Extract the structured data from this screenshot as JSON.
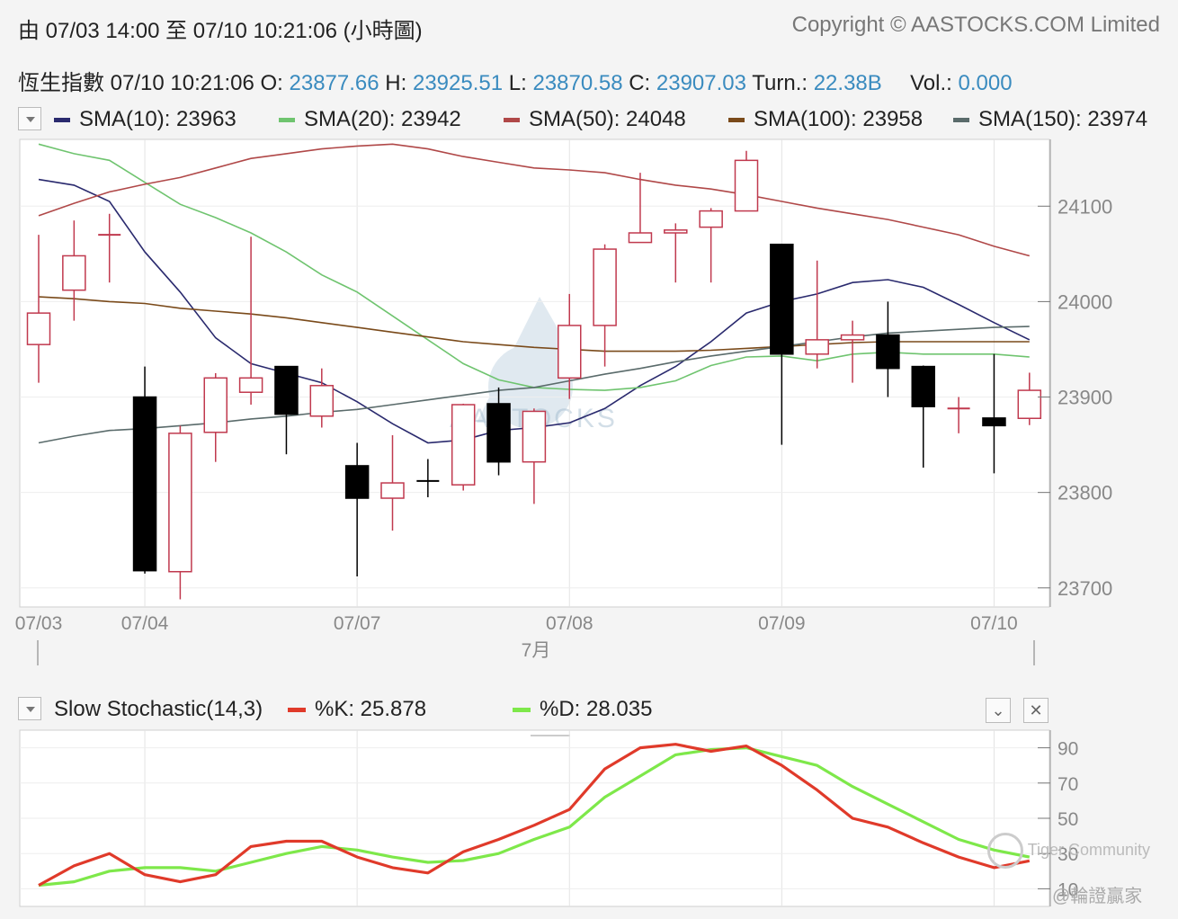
{
  "header": {
    "range_text": "由  07/03 14:00 至  07/10 10:21:06 (小時圖)",
    "copyright": "Copyright © AASTOCKS.COM Limited"
  },
  "quote": {
    "name": "恆生指數",
    "time": "07/10 10:21:06",
    "o_label": "O:",
    "o": "23877.66",
    "h_label": "H:",
    "h": "23925.51",
    "l_label": "L:",
    "l": "23870.58",
    "c_label": "C:",
    "c": "23907.03",
    "turn_label": "Turn.:",
    "turn": "22.38B",
    "vol_label": "Vol.:",
    "vol": "0.000"
  },
  "main_legend": [
    {
      "label": "SMA(10): 23963",
      "color": "#2a2a6e"
    },
    {
      "label": "SMA(20): 23942",
      "color": "#6fc46f"
    },
    {
      "label": "SMA(50): 24048",
      "color": "#b04848"
    },
    {
      "label": "SMA(100): 23958",
      "color": "#7a4a1a"
    },
    {
      "label": "SMA(150): 23974",
      "color": "#5a6b6b"
    }
  ],
  "sub_legend": {
    "title": "Slow Stochastic(14,3)",
    "k_label": "%K: 25.878",
    "k_color": "#e03a2a",
    "d_label": "%D: 28.035",
    "d_color": "#7ee84a"
  },
  "watermarks": {
    "center": "AASTOCKS",
    "tiger": "Tiger Community",
    "handle": "@輪證贏家"
  },
  "colors": {
    "up": "#c0394e",
    "down": "#000000",
    "price_label": "#3a8bbf"
  },
  "chart_data": [
    {
      "type": "candlestick",
      "ylim": [
        23680,
        24170
      ],
      "yticks": [
        23700,
        23800,
        23900,
        24000,
        24100
      ],
      "x_ticks": [
        {
          "i": 0,
          "label": "07/03"
        },
        {
          "i": 3,
          "label": "07/04"
        },
        {
          "i": 9,
          "label": "07/07"
        },
        {
          "i": 15,
          "label": "07/08"
        },
        {
          "i": 21,
          "label": "07/09"
        },
        {
          "i": 27,
          "label": "07/10"
        }
      ],
      "month_label": "7月",
      "candles": [
        {
          "o": 23955,
          "h": 24070,
          "l": 23915,
          "c": 23988
        },
        {
          "o": 24012,
          "h": 24085,
          "l": 23980,
          "c": 24048
        },
        {
          "o": 24068,
          "h": 24092,
          "l": 24020,
          "c": 24070
        },
        {
          "o": 23900,
          "h": 23932,
          "l": 23715,
          "c": 23718
        },
        {
          "o": 23717,
          "h": 23870,
          "l": 23688,
          "c": 23862
        },
        {
          "o": 23863,
          "h": 23925,
          "l": 23832,
          "c": 23920
        },
        {
          "o": 23905,
          "h": 24068,
          "l": 23892,
          "c": 23920
        },
        {
          "o": 23932,
          "h": 23932,
          "l": 23840,
          "c": 23882
        },
        {
          "o": 23880,
          "h": 23930,
          "l": 23868,
          "c": 23912
        },
        {
          "o": 23828,
          "h": 23852,
          "l": 23712,
          "c": 23794
        },
        {
          "o": 23794,
          "h": 23860,
          "l": 23760,
          "c": 23810
        },
        {
          "o": 23812,
          "h": 23835,
          "l": 23795,
          "c": 23810
        },
        {
          "o": 23808,
          "h": 23893,
          "l": 23802,
          "c": 23892
        },
        {
          "o": 23893,
          "h": 23910,
          "l": 23818,
          "c": 23832
        },
        {
          "o": 23832,
          "h": 23888,
          "l": 23788,
          "c": 23885
        },
        {
          "o": 23920,
          "h": 24008,
          "l": 23898,
          "c": 23975
        },
        {
          "o": 23975,
          "h": 24060,
          "l": 23932,
          "c": 24055
        },
        {
          "o": 24062,
          "h": 24135,
          "l": 24062,
          "c": 24072
        },
        {
          "o": 24072,
          "h": 24082,
          "l": 24020,
          "c": 24075
        },
        {
          "o": 24078,
          "h": 24098,
          "l": 24020,
          "c": 24095
        },
        {
          "o": 24095,
          "h": 24158,
          "l": 24095,
          "c": 24148
        },
        {
          "o": 24060,
          "h": 24060,
          "l": 23850,
          "c": 23945
        },
        {
          "o": 23945,
          "h": 24043,
          "l": 23930,
          "c": 23960
        },
        {
          "o": 23960,
          "h": 23980,
          "l": 23915,
          "c": 23965
        },
        {
          "o": 23965,
          "h": 24000,
          "l": 23900,
          "c": 23930
        },
        {
          "o": 23932,
          "h": 23933,
          "l": 23826,
          "c": 23890
        },
        {
          "o": 23888,
          "h": 23900,
          "l": 23862,
          "c": 23888
        },
        {
          "o": 23878,
          "h": 23945,
          "l": 23820,
          "c": 23870
        },
        {
          "o": 23877.66,
          "h": 23925.51,
          "l": 23870.58,
          "c": 23907.03
        }
      ],
      "series": [
        {
          "name": "SMA(10)",
          "color": "#2a2a6e",
          "values": [
            24128,
            24122,
            24105,
            24052,
            24010,
            23962,
            23935,
            23925,
            23915,
            23895,
            23872,
            23852,
            23855,
            23865,
            23868,
            23873,
            23888,
            23912,
            23932,
            23958,
            23988,
            24000,
            24008,
            24020,
            24023,
            24015,
            23997,
            23978,
            23960
          ]
        },
        {
          "name": "SMA(20)",
          "color": "#6fc46f",
          "values": [
            24165,
            24155,
            24148,
            24125,
            24102,
            24088,
            24072,
            24052,
            24028,
            24010,
            23985,
            23960,
            23935,
            23918,
            23910,
            23908,
            23907,
            23910,
            23917,
            23933,
            23942,
            23943,
            23938,
            23945,
            23947,
            23945,
            23945,
            23945,
            23942
          ]
        },
        {
          "name": "SMA(50)",
          "color": "#b04848",
          "values": [
            24090,
            24103,
            24115,
            24123,
            24130,
            24140,
            24150,
            24155,
            24160,
            24163,
            24165,
            24160,
            24152,
            24146,
            24140,
            24138,
            24135,
            24128,
            24122,
            24118,
            24112,
            24105,
            24098,
            24092,
            24086,
            24078,
            24070,
            24058,
            24048
          ]
        },
        {
          "name": "SMA(100)",
          "color": "#7a4a1a",
          "values": [
            24005,
            24003,
            24000,
            23998,
            23993,
            23990,
            23987,
            23983,
            23978,
            23973,
            23968,
            23963,
            23958,
            23955,
            23952,
            23950,
            23948,
            23948,
            23948,
            23949,
            23951,
            23953,
            23955,
            23957,
            23958,
            23958,
            23958,
            23958,
            23958
          ]
        },
        {
          "name": "SMA(150)",
          "color": "#5a6b6b",
          "values": [
            23852,
            23859,
            23865,
            23867,
            23870,
            23873,
            23877,
            23880,
            23884,
            23887,
            23892,
            23897,
            23902,
            23907,
            23910,
            23917,
            23924,
            23930,
            23937,
            23943,
            23948,
            23953,
            23958,
            23963,
            23967,
            23969,
            23971,
            23973,
            23974
          ]
        }
      ]
    },
    {
      "type": "line",
      "ylim": [
        0,
        100
      ],
      "yticks": [
        10,
        30,
        50,
        70,
        90
      ],
      "series": [
        {
          "name": "%K",
          "color": "#e03a2a",
          "values": [
            12,
            23,
            30,
            18,
            14,
            18,
            34,
            37,
            37,
            28,
            22,
            19,
            31,
            38,
            46,
            55,
            78,
            90,
            92,
            88,
            91,
            80,
            66,
            50,
            45,
            36,
            28,
            22,
            25.878
          ]
        },
        {
          "name": "%D",
          "color": "#7ee84a",
          "values": [
            12,
            14,
            20,
            22,
            22,
            20,
            25,
            30,
            34,
            32,
            28,
            25,
            26,
            30,
            38,
            45,
            62,
            74,
            86,
            89,
            90,
            85,
            80,
            68,
            58,
            48,
            38,
            32,
            28.035
          ]
        }
      ]
    }
  ]
}
